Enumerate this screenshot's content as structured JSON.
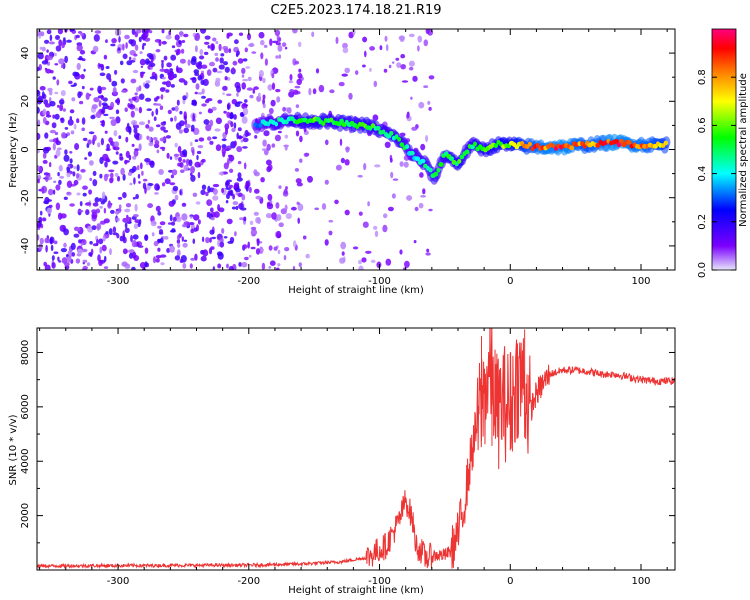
{
  "chart_data": [
    {
      "type": "heatmap",
      "title": "C2E5.2023.174.18.21.R19",
      "xlabel": "Height of straight line (km)",
      "ylabel": "Frequency (Hz)",
      "xlim": [
        -362,
        126
      ],
      "ylim": [
        -50,
        50
      ],
      "xticks": [
        -300,
        -200,
        -100,
        0,
        100
      ],
      "yticks": [
        -40,
        -20,
        0,
        20,
        40
      ],
      "colorbar": {
        "label": "Normalized spectral amplitude",
        "range": [
          0.0,
          1.0
        ],
        "ticks": [
          0.0,
          0.2,
          0.4,
          0.6,
          0.8
        ],
        "colormap": [
          "#e6e6fa",
          "#7b00ff",
          "#0000ff",
          "#00ffff",
          "#00ff00",
          "#ffff00",
          "#ff7f00",
          "#ff0000",
          "#ff007f"
        ]
      },
      "noise_region_x": [
        -362,
        -60
      ],
      "ridge": [
        {
          "x": -195,
          "y": 10,
          "amp": 0.35
        },
        {
          "x": -185,
          "y": 11,
          "amp": 0.45
        },
        {
          "x": -170,
          "y": 12,
          "amp": 0.5
        },
        {
          "x": -150,
          "y": 12,
          "amp": 0.6
        },
        {
          "x": -130,
          "y": 11,
          "amp": 0.55
        },
        {
          "x": -110,
          "y": 10,
          "amp": 0.6
        },
        {
          "x": -95,
          "y": 7,
          "amp": 0.5
        },
        {
          "x": -85,
          "y": 4,
          "amp": 0.55
        },
        {
          "x": -75,
          "y": -2,
          "amp": 0.45
        },
        {
          "x": -65,
          "y": -6,
          "amp": 0.5
        },
        {
          "x": -58,
          "y": -12,
          "amp": 0.55
        },
        {
          "x": -50,
          "y": -2,
          "amp": 0.55
        },
        {
          "x": -40,
          "y": -6,
          "amp": 0.6
        },
        {
          "x": -30,
          "y": 2,
          "amp": 0.55
        },
        {
          "x": -20,
          "y": 0,
          "amp": 0.6
        },
        {
          "x": -10,
          "y": 2,
          "amp": 0.65
        },
        {
          "x": 0,
          "y": 2,
          "amp": 0.7
        },
        {
          "x": 20,
          "y": 1,
          "amp": 0.9
        },
        {
          "x": 40,
          "y": 1,
          "amp": 0.95
        },
        {
          "x": 60,
          "y": 2,
          "amp": 0.85
        },
        {
          "x": 80,
          "y": 3,
          "amp": 0.95
        },
        {
          "x": 100,
          "y": 2,
          "amp": 0.9
        },
        {
          "x": 120,
          "y": 2,
          "amp": 0.8
        }
      ]
    },
    {
      "type": "line",
      "xlabel": "Height of straight line (km)",
      "ylabel": "SNR (10 * v/v)",
      "xlim": [
        -362,
        126
      ],
      "ylim": [
        0,
        8900
      ],
      "xticks": [
        -300,
        -200,
        -100,
        0,
        100
      ],
      "yticks": [
        2000,
        4000,
        6000,
        8000
      ],
      "color": "#ee3333",
      "x": [
        -362,
        -300,
        -250,
        -200,
        -160,
        -130,
        -110,
        -95,
        -85,
        -80,
        -75,
        -72,
        -68,
        -65,
        -60,
        -55,
        -50,
        -45,
        -40,
        -35,
        -30,
        -25,
        -20,
        -15,
        -10,
        -5,
        0,
        5,
        10,
        15,
        20,
        30,
        40,
        50,
        60,
        70,
        80,
        90,
        100,
        110,
        126
      ],
      "values": [
        150,
        160,
        170,
        180,
        220,
        300,
        450,
        900,
        1800,
        2600,
        1900,
        900,
        700,
        450,
        500,
        550,
        550,
        700,
        1300,
        2500,
        4200,
        5500,
        6500,
        7400,
        5800,
        6200,
        6000,
        7000,
        7000,
        5800,
        6500,
        7200,
        7350,
        7350,
        7300,
        7200,
        7200,
        7100,
        7000,
        6950,
        6950
      ],
      "spikes": [
        {
          "x": -22,
          "y": 8600
        },
        {
          "x": -14,
          "y": 8300
        },
        {
          "x": 0,
          "y": 8000
        },
        {
          "x": 11,
          "y": 8850
        }
      ]
    }
  ]
}
